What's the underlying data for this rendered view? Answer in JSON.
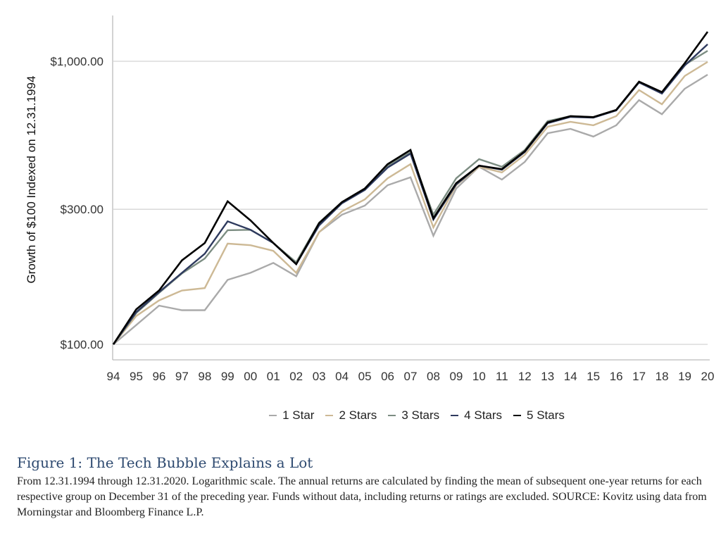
{
  "chart_data": {
    "type": "line",
    "title": "",
    "xlabel": "",
    "ylabel": "Growth of $100 Indexed on 12.31.1994",
    "y_scale": "log",
    "ylim": [
      100,
      1300
    ],
    "y_ticks": [
      100,
      300,
      1000
    ],
    "y_tick_labels": [
      "$100.00",
      "$300.00",
      "$1,000.00"
    ],
    "grid": "horizontal",
    "legend_position": "bottom",
    "categories": [
      "94",
      "95",
      "96",
      "97",
      "98",
      "99",
      "00",
      "01",
      "02",
      "03",
      "04",
      "05",
      "06",
      "07",
      "08",
      "09",
      "10",
      "11",
      "12",
      "13",
      "14",
      "15",
      "16",
      "17",
      "18",
      "19",
      "20"
    ],
    "series": [
      {
        "name": "1 Star",
        "color": "#aaaaaa",
        "values": [
          100,
          117,
          137,
          132,
          132,
          169,
          179,
          194,
          174,
          249,
          287,
          309,
          365,
          389,
          242,
          355,
          424,
          382,
          441,
          557,
          577,
          542,
          594,
          729,
          650,
          800,
          897
        ]
      },
      {
        "name": "2 Stars",
        "color": "#cdb995",
        "values": [
          100,
          126,
          143,
          155,
          158,
          227,
          224,
          214,
          179,
          249,
          295,
          325,
          386,
          433,
          259,
          365,
          424,
          405,
          467,
          587,
          611,
          594,
          640,
          791,
          705,
          887,
          995
        ]
      },
      {
        "name": "3 Stars",
        "color": "#7c8d82",
        "values": [
          100,
          129,
          152,
          178,
          201,
          253,
          254,
          228,
          195,
          269,
          318,
          355,
          428,
          477,
          287,
          386,
          451,
          424,
          486,
          615,
          640,
          635,
          673,
          842,
          773,
          972,
          1089
        ]
      },
      {
        "name": "4 Stars",
        "color": "#2e3a5e",
        "values": [
          100,
          130,
          153,
          179,
          209,
          272,
          254,
          228,
          192,
          263,
          315,
          351,
          421,
          472,
          276,
          367,
          428,
          414,
          478,
          604,
          636,
          632,
          670,
          842,
          769,
          966,
          1148
        ]
      },
      {
        "name": "5 Stars",
        "color": "#000000",
        "values": [
          100,
          133,
          155,
          198,
          228,
          320,
          274,
          228,
          192,
          268,
          318,
          355,
          433,
          486,
          279,
          371,
          428,
          416,
          481,
          608,
          640,
          635,
          673,
          847,
          778,
          984,
          1271
        ]
      }
    ]
  },
  "caption": {
    "title": "Figure 1: The Tech Bubble Explains a Lot",
    "body": "From 12.31.1994 through 12.31.2020. Logarithmic scale. The annual returns are calculated by finding the mean of subsequent one-year returns for each respective group on December 31 of the preceding year. Funds without data, including returns or ratings are excluded. SOURCE: Kovitz using data from Morningstar and Bloomberg Finance L.P."
  }
}
